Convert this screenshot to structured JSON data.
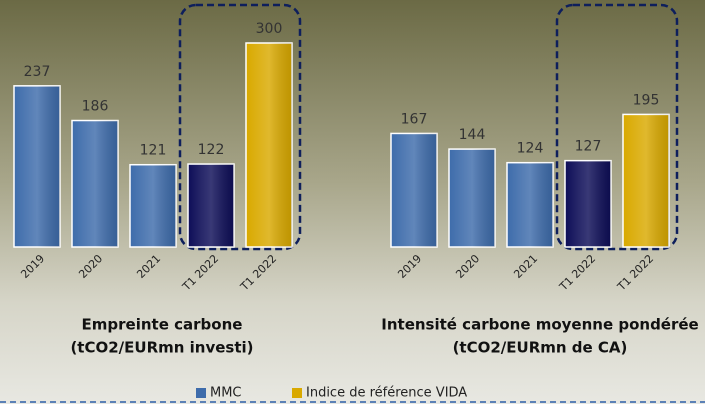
{
  "chart_data": [
    {
      "type": "bar",
      "title": "Empreinte carbone",
      "subtitle": "(tCO2/EURmn investi)",
      "categories": [
        "2019",
        "2020",
        "2021",
        "T1 2022",
        "T1 2022"
      ],
      "values": [
        237,
        186,
        121,
        122,
        300
      ],
      "colors": [
        "#3e6cab",
        "#3e6cab",
        "#3e6cab",
        "#0e0e58",
        "#d9a900"
      ]
    },
    {
      "type": "bar",
      "title": "Intensité carbone moyenne pondérée",
      "subtitle": "(tCO2/EURmn de CA)",
      "categories": [
        "2019",
        "2020",
        "2021",
        "T1 2022",
        "T1 2022"
      ],
      "values": [
        167,
        144,
        124,
        127,
        195
      ],
      "colors": [
        "#3e6cab",
        "#3e6cab",
        "#3e6cab",
        "#0e0e58",
        "#d9a900"
      ]
    }
  ],
  "legend": [
    {
      "name": "MMC",
      "color": "#3e6cab"
    },
    {
      "name": "Indice de référence VIDA",
      "color": "#d9a900"
    }
  ]
}
